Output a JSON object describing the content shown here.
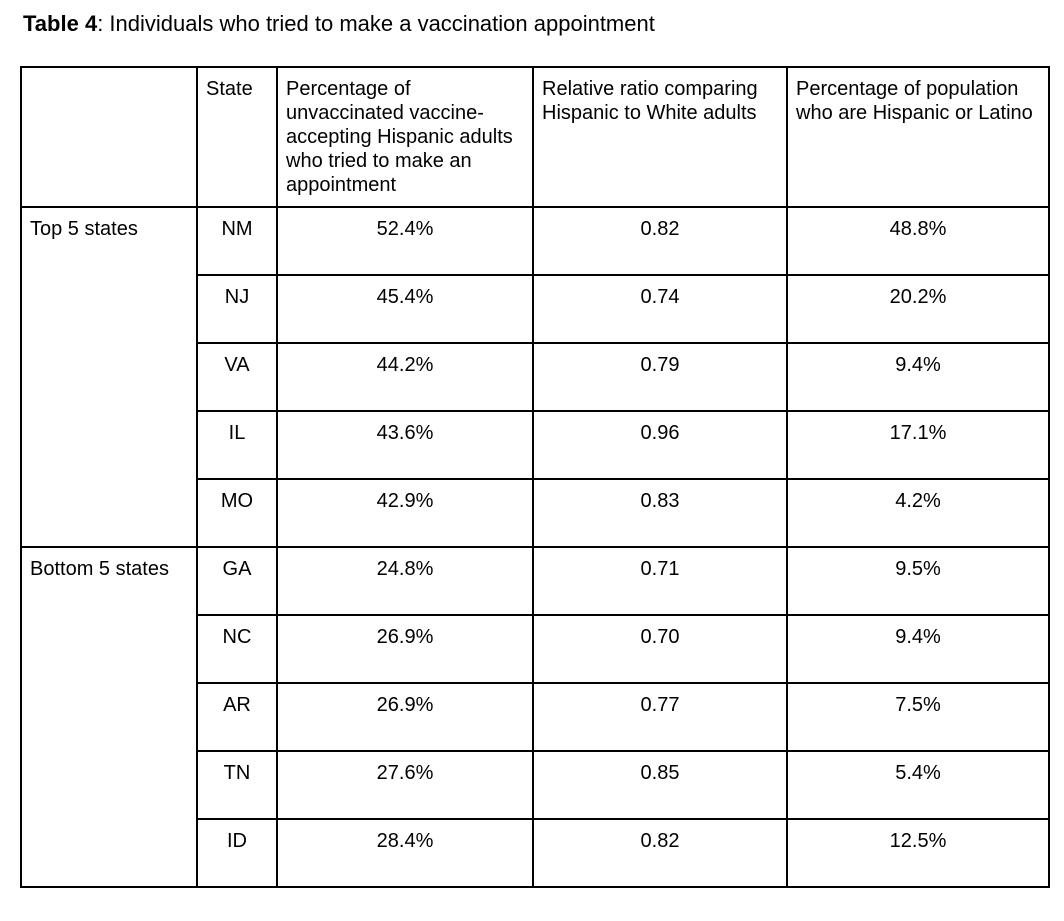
{
  "title": {
    "prefix": "Table 4",
    "rest": ": Individuals who tried to make a vaccination appointment"
  },
  "table": {
    "headers": {
      "group": "",
      "state": "State",
      "pct_tried": "Percentage of unvaccinated vaccine-accepting Hispanic adults who tried to make an appointment",
      "relative_ratio": "Relative ratio comparing Hispanic to White adults",
      "pct_population": "Percentage of population who are Hispanic or Latino"
    },
    "groups": [
      {
        "label": "Top 5 states",
        "rows": [
          {
            "state": "NM",
            "pct_tried": "52.4%",
            "relative_ratio": "0.82",
            "pct_population": "48.8%"
          },
          {
            "state": "NJ",
            "pct_tried": "45.4%",
            "relative_ratio": "0.74",
            "pct_population": "20.2%"
          },
          {
            "state": "VA",
            "pct_tried": "44.2%",
            "relative_ratio": "0.79",
            "pct_population": "9.4%"
          },
          {
            "state": "IL",
            "pct_tried": "43.6%",
            "relative_ratio": "0.96",
            "pct_population": "17.1%"
          },
          {
            "state": "MO",
            "pct_tried": "42.9%",
            "relative_ratio": "0.83",
            "pct_population": "4.2%"
          }
        ]
      },
      {
        "label": "Bottom 5 states",
        "rows": [
          {
            "state": "GA",
            "pct_tried": "24.8%",
            "relative_ratio": "0.71",
            "pct_population": "9.5%"
          },
          {
            "state": "NC",
            "pct_tried": "26.9%",
            "relative_ratio": "0.70",
            "pct_population": "9.4%"
          },
          {
            "state": "AR",
            "pct_tried": "26.9%",
            "relative_ratio": "0.77",
            "pct_population": "7.5%"
          },
          {
            "state": "TN",
            "pct_tried": "27.6%",
            "relative_ratio": "0.85",
            "pct_population": "5.4%"
          },
          {
            "state": "ID",
            "pct_tried": "28.4%",
            "relative_ratio": "0.82",
            "pct_population": "12.5%"
          }
        ]
      }
    ]
  }
}
